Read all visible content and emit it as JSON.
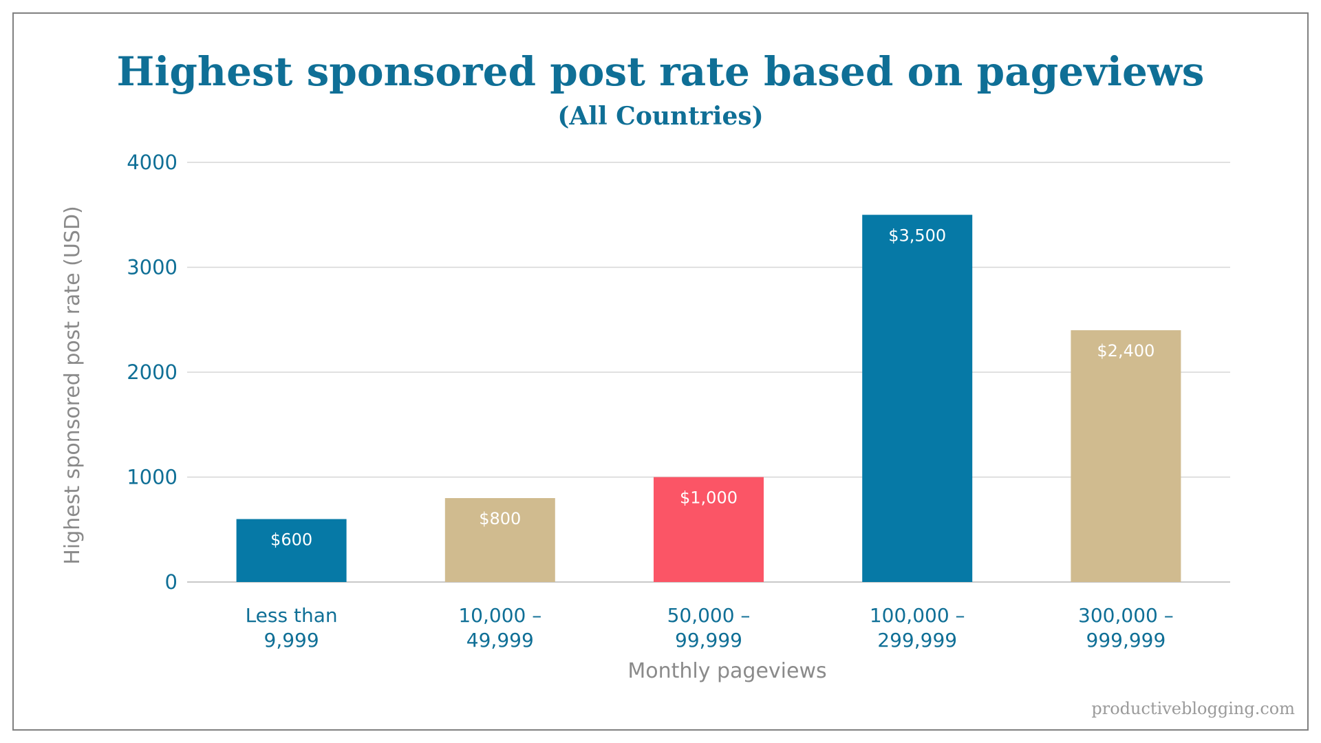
{
  "chart_data": {
    "type": "bar",
    "title": "Highest sponsored post rate based on pageviews",
    "subtitle": "(All Countries)",
    "xlabel": "Monthly pageviews",
    "ylabel": "Highest sponsored post rate (USD)",
    "ylim": [
      0,
      4000
    ],
    "yticks": [
      "0",
      "1000",
      "2000",
      "3000",
      "4000"
    ],
    "categories": [
      [
        "Less than",
        "9,999"
      ],
      [
        "10,000 –",
        "49,999"
      ],
      [
        "50,000 –",
        "99,999"
      ],
      [
        "100,000 –",
        "299,999"
      ],
      [
        "300,000 –",
        "999,999"
      ]
    ],
    "values": [
      600,
      800,
      1000,
      3500,
      2400
    ],
    "data_labels": [
      "$600",
      "$800",
      "$1,000",
      "$3,500",
      "$2,400"
    ],
    "bar_colors": [
      "#0679a6",
      "#d0bb8f",
      "#fb5566",
      "#0679a6",
      "#d0bb8f"
    ],
    "grid": true,
    "legend": "none"
  },
  "watermark": "productiveblogging.com",
  "colors": {
    "title": "#0f6f96",
    "tick": "#0f6f96",
    "axis_title": "#8a8a8a"
  }
}
